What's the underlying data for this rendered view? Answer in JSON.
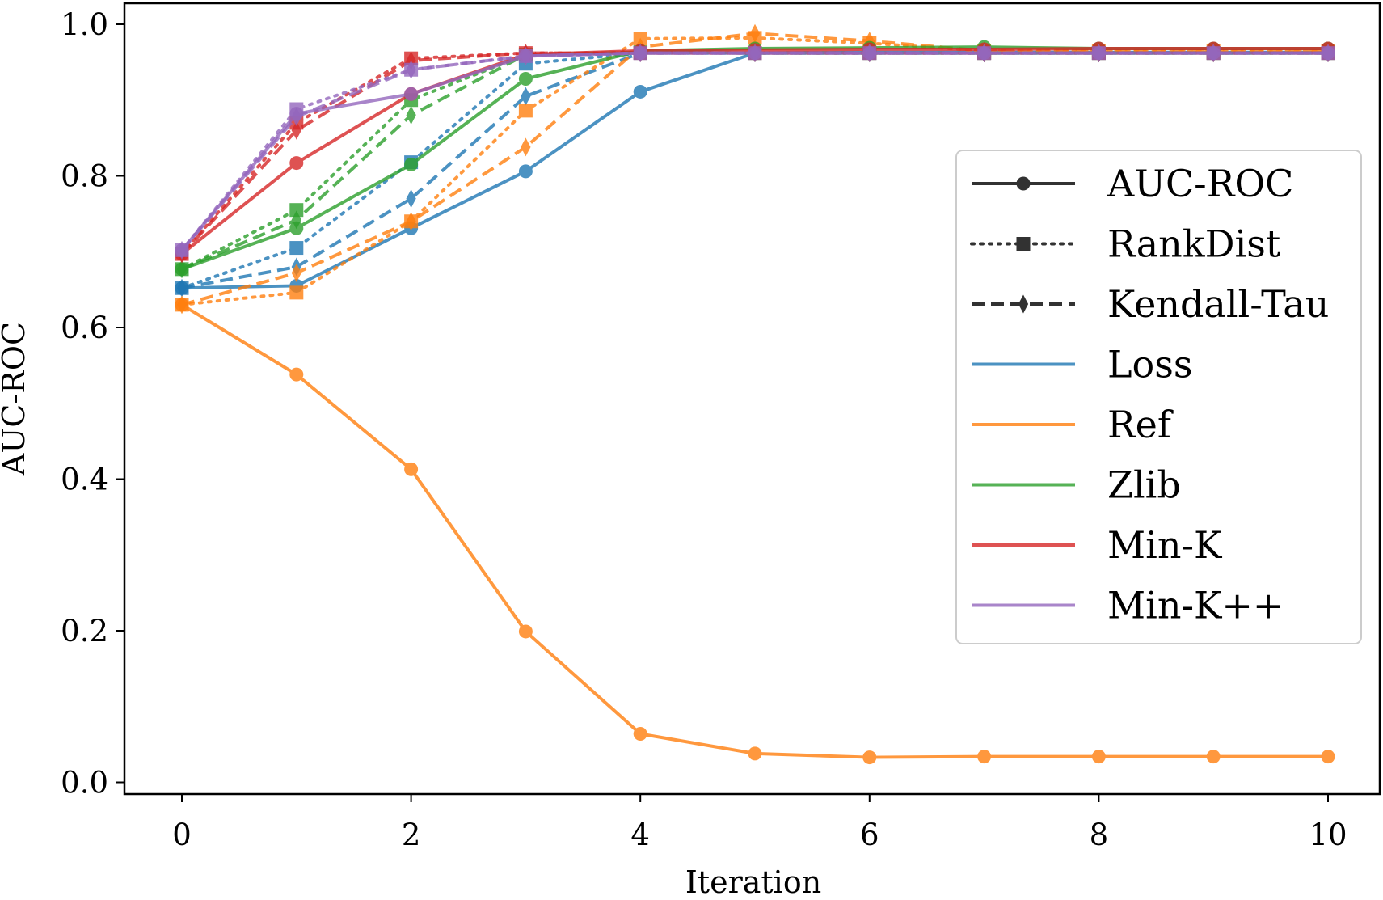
{
  "chart_data": {
    "type": "line",
    "title": "",
    "xlabel": "Iteration",
    "ylabel": "AUC-ROC",
    "xlim": [
      -0.5,
      10.5
    ],
    "ylim": [
      -0.015,
      1.03
    ],
    "xticks": [
      0,
      2,
      4,
      6,
      8,
      10
    ],
    "xtick_labels": [
      "0",
      "2",
      "4",
      "6",
      "8",
      "10"
    ],
    "yticks": [
      0.0,
      0.2,
      0.4,
      0.6,
      0.8,
      1.0
    ],
    "ytick_labels": [
      "0.0",
      "0.2",
      "0.4",
      "0.6",
      "0.8",
      "1.0"
    ],
    "grid": false,
    "legend_position": "center-right",
    "x": [
      0,
      1,
      2,
      3,
      4,
      5,
      6,
      7,
      8,
      9,
      10
    ],
    "metrics": [
      {
        "key": "auc",
        "label": "AUC-ROC",
        "marker": "circle",
        "dash": "solid"
      },
      {
        "key": "rank",
        "label": "RankDist",
        "marker": "square",
        "dash": "dotted"
      },
      {
        "key": "kendall",
        "label": "Kendall-Tau",
        "marker": "diamond",
        "dash": "dashed"
      }
    ],
    "methods": [
      {
        "key": "loss",
        "label": "Loss",
        "color": "#1f77b4"
      },
      {
        "key": "ref",
        "label": "Ref",
        "color": "#ff7f0e"
      },
      {
        "key": "zlib",
        "label": "Zlib",
        "color": "#2ca02c"
      },
      {
        "key": "mink",
        "label": "Min-K",
        "color": "#d62728"
      },
      {
        "key": "minkpp",
        "label": "Min-K++",
        "color": "#9467bd"
      }
    ],
    "series": [
      {
        "name": "Loss AUC-ROC",
        "method": "loss",
        "metric": "auc",
        "values": [
          0.652,
          0.655,
          0.731,
          0.806,
          0.911,
          0.962,
          0.963,
          0.963,
          0.963,
          0.963,
          0.963
        ]
      },
      {
        "name": "Loss RankDist",
        "method": "loss",
        "metric": "rank",
        "values": [
          0.652,
          0.705,
          0.818,
          0.948,
          0.962,
          0.962,
          0.962,
          0.962,
          0.962,
          0.962,
          0.962
        ]
      },
      {
        "name": "Loss Kendall-Tau",
        "method": "loss",
        "metric": "kendall",
        "values": [
          0.652,
          0.68,
          0.77,
          0.905,
          0.962,
          0.962,
          0.962,
          0.962,
          0.962,
          0.962,
          0.962
        ]
      },
      {
        "name": "Ref AUC-ROC",
        "method": "ref",
        "metric": "auc",
        "values": [
          0.63,
          0.538,
          0.413,
          0.199,
          0.064,
          0.038,
          0.033,
          0.034,
          0.034,
          0.034,
          0.034
        ]
      },
      {
        "name": "Ref RankDist",
        "method": "ref",
        "metric": "rank",
        "values": [
          0.63,
          0.646,
          0.74,
          0.886,
          0.981,
          0.982,
          0.975,
          0.965,
          0.965,
          0.965,
          0.965
        ]
      },
      {
        "name": "Ref Kendall-Tau",
        "method": "ref",
        "metric": "kendall",
        "values": [
          0.63,
          0.672,
          0.74,
          0.838,
          0.97,
          0.988,
          0.978,
          0.965,
          0.965,
          0.965,
          0.965
        ]
      },
      {
        "name": "Zlib AUC-ROC",
        "method": "zlib",
        "metric": "auc",
        "values": [
          0.677,
          0.731,
          0.815,
          0.928,
          0.965,
          0.968,
          0.969,
          0.97,
          0.968,
          0.968,
          0.968
        ]
      },
      {
        "name": "Zlib RankDist",
        "method": "zlib",
        "metric": "rank",
        "values": [
          0.677,
          0.755,
          0.9,
          0.96,
          0.963,
          0.962,
          0.962,
          0.962,
          0.962,
          0.962,
          0.962
        ]
      },
      {
        "name": "Zlib Kendall-Tau",
        "method": "zlib",
        "metric": "kendall",
        "values": [
          0.677,
          0.742,
          0.88,
          0.96,
          0.963,
          0.962,
          0.962,
          0.962,
          0.962,
          0.962,
          0.962
        ]
      },
      {
        "name": "Min-K AUC-ROC",
        "method": "mink",
        "metric": "auc",
        "values": [
          0.697,
          0.817,
          0.908,
          0.96,
          0.965,
          0.966,
          0.967,
          0.967,
          0.968,
          0.968,
          0.968
        ]
      },
      {
        "name": "Min-K RankDist",
        "method": "mink",
        "metric": "rank",
        "values": [
          0.697,
          0.87,
          0.955,
          0.962,
          0.962,
          0.962,
          0.962,
          0.962,
          0.962,
          0.962,
          0.962
        ]
      },
      {
        "name": "Min-K Kendall-Tau",
        "method": "mink",
        "metric": "kendall",
        "values": [
          0.697,
          0.86,
          0.952,
          0.962,
          0.962,
          0.962,
          0.962,
          0.962,
          0.962,
          0.962,
          0.962
        ]
      },
      {
        "name": "Min-K++ AUC-ROC",
        "method": "minkpp",
        "metric": "auc",
        "values": [
          0.702,
          0.882,
          0.908,
          0.958,
          0.962,
          0.962,
          0.962,
          0.962,
          0.962,
          0.962,
          0.962
        ]
      },
      {
        "name": "Min-K++ RankDist",
        "method": "minkpp",
        "metric": "rank",
        "values": [
          0.702,
          0.888,
          0.94,
          0.958,
          0.962,
          0.962,
          0.962,
          0.962,
          0.962,
          0.962,
          0.962
        ]
      },
      {
        "name": "Min-K++ Kendall-Tau",
        "method": "minkpp",
        "metric": "kendall",
        "values": [
          0.702,
          0.878,
          0.94,
          0.958,
          0.962,
          0.962,
          0.962,
          0.962,
          0.962,
          0.962,
          0.962
        ]
      }
    ]
  }
}
